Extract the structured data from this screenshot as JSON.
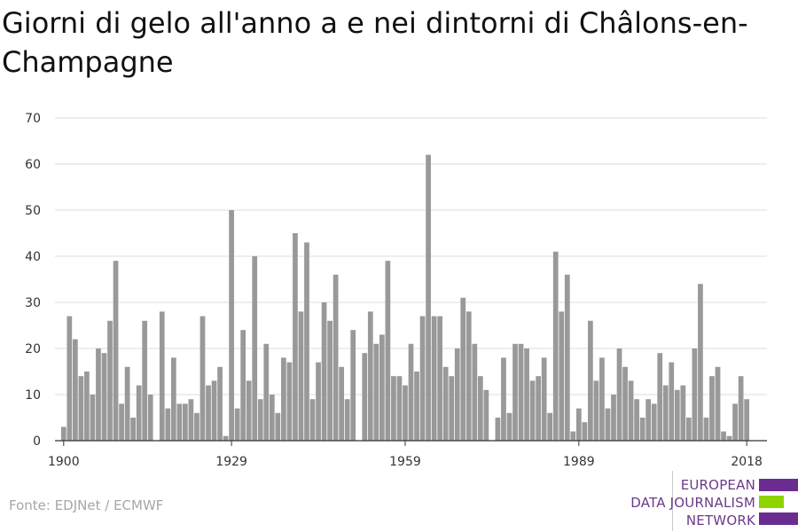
{
  "title": "Giorni di gelo all'anno a e nei dintorni di Châlons-en-Champagne",
  "source": "Fonte: EDJNet / ECMWF",
  "logo": {
    "line1": "EUROPEAN",
    "line2": "DATA JOURNALISM",
    "line3": "NETWORK",
    "colors": [
      "#6b2c91",
      "#8fd400",
      "#6b2c91"
    ]
  },
  "colors": {
    "bar": "#999999",
    "grid": "#dddddd",
    "axis": "#333333"
  },
  "chart_data": {
    "type": "bar",
    "title": "Giorni di gelo all'anno a e nei dintorni di Châlons-en-Champagne",
    "xlabel": "",
    "ylabel": "",
    "ylim": [
      0,
      70
    ],
    "yticks": [
      0,
      10,
      20,
      30,
      40,
      50,
      60,
      70
    ],
    "xticks": [
      1900,
      1929,
      1959,
      1989,
      2018
    ],
    "grid": true,
    "x": [
      1900,
      1901,
      1902,
      1903,
      1904,
      1905,
      1906,
      1907,
      1908,
      1909,
      1910,
      1911,
      1912,
      1913,
      1914,
      1915,
      1916,
      1917,
      1918,
      1919,
      1920,
      1921,
      1922,
      1923,
      1924,
      1925,
      1926,
      1927,
      1928,
      1929,
      1930,
      1931,
      1932,
      1933,
      1934,
      1935,
      1936,
      1937,
      1938,
      1939,
      1940,
      1941,
      1942,
      1943,
      1944,
      1945,
      1946,
      1947,
      1948,
      1949,
      1950,
      1951,
      1952,
      1953,
      1954,
      1955,
      1956,
      1957,
      1958,
      1959,
      1960,
      1961,
      1962,
      1963,
      1964,
      1965,
      1966,
      1967,
      1968,
      1969,
      1970,
      1971,
      1972,
      1973,
      1974,
      1975,
      1976,
      1977,
      1978,
      1979,
      1980,
      1981,
      1982,
      1983,
      1984,
      1985,
      1986,
      1987,
      1988,
      1989,
      1990,
      1991,
      1992,
      1993,
      1994,
      1995,
      1996,
      1997,
      1998,
      1999,
      2000,
      2001,
      2002,
      2003,
      2004,
      2005,
      2006,
      2007,
      2008,
      2009,
      2010,
      2011,
      2012,
      2013,
      2014,
      2015,
      2016,
      2017,
      2018
    ],
    "values": [
      3,
      27,
      22,
      14,
      15,
      10,
      20,
      19,
      26,
      39,
      8,
      16,
      5,
      12,
      26,
      10,
      0,
      28,
      7,
      18,
      8,
      8,
      9,
      6,
      27,
      12,
      13,
      16,
      1,
      50,
      7,
      24,
      13,
      40,
      9,
      21,
      10,
      6,
      18,
      17,
      45,
      28,
      43,
      9,
      17,
      30,
      26,
      36,
      16,
      9,
      24,
      0,
      19,
      28,
      21,
      23,
      39,
      14,
      14,
      12,
      21,
      15,
      27,
      62,
      27,
      27,
      16,
      14,
      20,
      31,
      28,
      21,
      14,
      11,
      0,
      5,
      18,
      6,
      21,
      21,
      20,
      13,
      14,
      18,
      6,
      41,
      28,
      36,
      2,
      7,
      4,
      26,
      13,
      18,
      7,
      10,
      20,
      16,
      13,
      9,
      5,
      9,
      8,
      19,
      12,
      17,
      11,
      12,
      5,
      20,
      34,
      5,
      14,
      16,
      2,
      1,
      8,
      14,
      9
    ]
  }
}
